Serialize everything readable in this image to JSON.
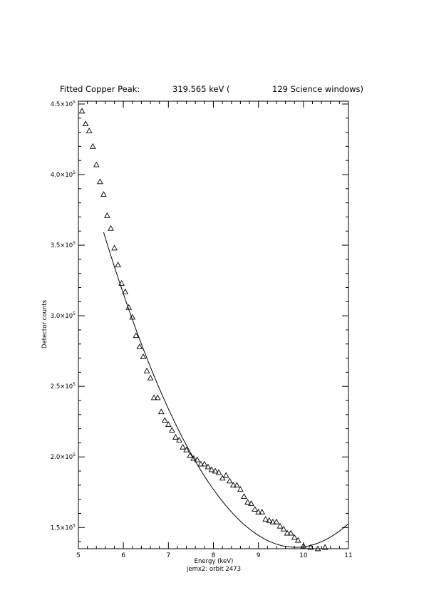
{
  "chart_data": {
    "type": "scatter",
    "title_parts": [
      "Fitted Copper Peak:",
      "319.565 keV (",
      "129 Science windows)"
    ],
    "xlabel": "Energy (keV)",
    "ylabel": "Detector counts",
    "footnote": "jemx2: orbit 2473",
    "xlim": [
      5,
      11
    ],
    "ylim": [
      135000,
      452000
    ],
    "x_ticks": [
      5,
      6,
      7,
      8,
      9,
      10,
      11
    ],
    "y_ticks": [
      150000,
      200000,
      250000,
      300000,
      350000,
      400000,
      450000
    ],
    "y_tick_labels": [
      {
        "mant": "1.5",
        "exp": "5"
      },
      {
        "mant": "2.0",
        "exp": "5"
      },
      {
        "mant": "2.5",
        "exp": "5"
      },
      {
        "mant": "3.0",
        "exp": "5"
      },
      {
        "mant": "3.5",
        "exp": "5"
      },
      {
        "mant": "4.0",
        "exp": "5"
      },
      {
        "mant": "4.5",
        "exp": "5"
      }
    ],
    "grid": false,
    "series": [
      {
        "marker": "triangle",
        "x": [
          5.08,
          5.16,
          5.24,
          5.32,
          5.4,
          5.48,
          5.56,
          5.64,
          5.72,
          5.8,
          5.88,
          5.96,
          6.04,
          6.12,
          6.2,
          6.28,
          6.36,
          6.44,
          6.52,
          6.6,
          6.68,
          6.76,
          6.84,
          6.92,
          7.0,
          7.08,
          7.16,
          7.24,
          7.32,
          7.4,
          7.48,
          7.56,
          7.64,
          7.72,
          7.8,
          7.88,
          7.96,
          8.04,
          8.12,
          8.2,
          8.28,
          8.36,
          8.44,
          8.52,
          8.6,
          8.68,
          8.76,
          8.84,
          8.92,
          9.0,
          9.08,
          9.16,
          9.24,
          9.32,
          9.4,
          9.48,
          9.56,
          9.64,
          9.72,
          9.8,
          9.88,
          10.0,
          10.16,
          10.32,
          10.48,
          10.64
        ],
        "y": [
          445000,
          436000,
          431000,
          420000,
          407000,
          395000,
          386000,
          371000,
          362000,
          348000,
          336000,
          323000,
          317000,
          306000,
          299000,
          286000,
          278000,
          271000,
          261000,
          256000,
          242000,
          242000,
          232000,
          226000,
          223000,
          219000,
          214000,
          212000,
          207000,
          205000,
          201000,
          199000,
          198000,
          195000,
          195000,
          193000,
          191000,
          190000,
          189000,
          185000,
          187000,
          183000,
          180000,
          180000,
          177000,
          172000,
          168000,
          167000,
          163000,
          161000,
          161000,
          156000,
          155000,
          154000,
          154000,
          151000,
          149000,
          146000,
          146000,
          143000,
          141000,
          137000,
          136000,
          135000,
          136000,
          134000
        ]
      }
    ],
    "fit_curve": {
      "type": "parabola",
      "x_start": 5.56,
      "x_end": 11.0,
      "vertex_x": 9.83,
      "vertex_y": 136000,
      "coef_a": 12240
    }
  }
}
